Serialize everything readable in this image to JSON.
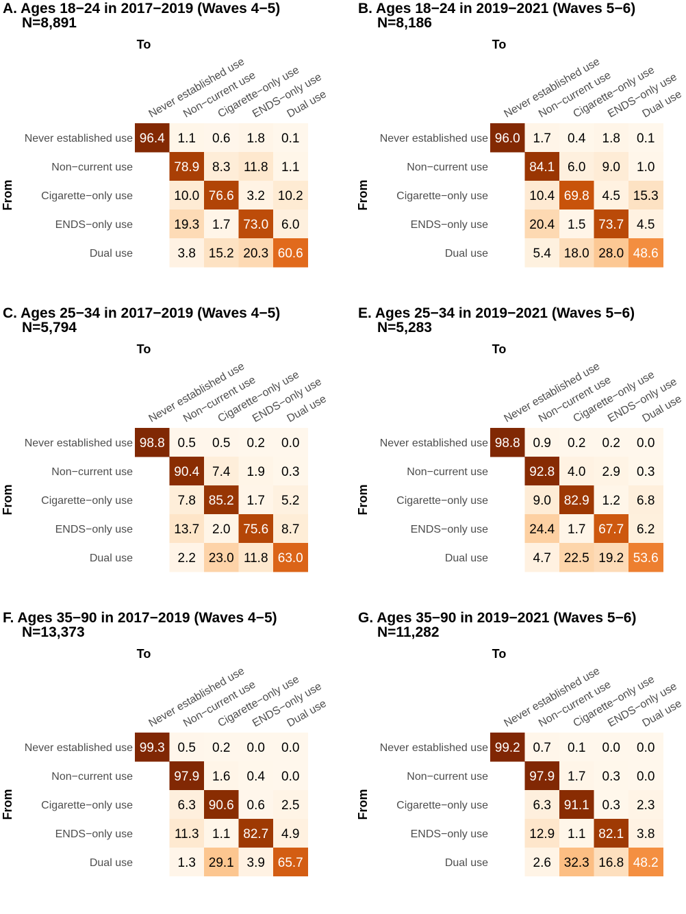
{
  "palette": {
    "0": "#fff7ec",
    "10": "#feebd4",
    "20": "#fddab4",
    "30": "#fcc48c",
    "40": "#fba863",
    "50": "#f28a3a",
    "60": "#e36c1d",
    "70": "#c7520b",
    "80": "#a53d04",
    "90": "#8a2d02",
    "100": "#7f2704",
    "light_text": "#000000",
    "dark_text": "#ffffff"
  },
  "chart_data": [
    {
      "type": "heatmap",
      "title": "A. Ages 18−24 in 2017−2019 (Waves 4−5)",
      "subtitle": "N=8,891",
      "xlabel": "To",
      "ylabel": "From",
      "x": [
        "Never established use",
        "Non−current use",
        "Cigarette−only use",
        "ENDS−only use",
        "Dual use"
      ],
      "y": [
        "Never established use",
        "Non−current use",
        "Cigarette−only use",
        "ENDS−only use",
        "Dual use"
      ],
      "values": [
        [
          96.4,
          1.1,
          0.6,
          1.8,
          0.1
        ],
        [
          null,
          78.9,
          8.3,
          11.8,
          1.1
        ],
        [
          null,
          10.0,
          76.6,
          3.2,
          10.2
        ],
        [
          null,
          19.3,
          1.7,
          73.0,
          6.0
        ],
        [
          null,
          3.8,
          15.2,
          20.3,
          60.6
        ]
      ]
    },
    {
      "type": "heatmap",
      "title": "B. Ages 18−24 in 2019−2021 (Waves 5−6)",
      "subtitle": "N=8,186",
      "xlabel": "To",
      "ylabel": "From",
      "x": [
        "Never established use",
        "Non−current use",
        "Cigarette−only use",
        "ENDS−only use",
        "Dual use"
      ],
      "y": [
        "Never established use",
        "Non−current use",
        "Cigarette−only use",
        "ENDS−only use",
        "Dual use"
      ],
      "values": [
        [
          96.0,
          1.7,
          0.4,
          1.8,
          0.1
        ],
        [
          null,
          84.1,
          6.0,
          9.0,
          1.0
        ],
        [
          null,
          10.4,
          69.8,
          4.5,
          15.3
        ],
        [
          null,
          20.4,
          1.5,
          73.7,
          4.5
        ],
        [
          null,
          5.4,
          18.0,
          28.0,
          48.6
        ]
      ]
    },
    {
      "type": "heatmap",
      "title": "C. Ages 25−34 in 2017−2019 (Waves 4−5)",
      "subtitle": "N=5,794",
      "xlabel": "To",
      "ylabel": "From",
      "x": [
        "Never established use",
        "Non−current use",
        "Cigarette−only use",
        "ENDS−only use",
        "Dual use"
      ],
      "y": [
        "Never established use",
        "Non−current use",
        "Cigarette−only use",
        "ENDS−only use",
        "Dual use"
      ],
      "values": [
        [
          98.8,
          0.5,
          0.5,
          0.2,
          0.0
        ],
        [
          null,
          90.4,
          7.4,
          1.9,
          0.3
        ],
        [
          null,
          7.8,
          85.2,
          1.7,
          5.2
        ],
        [
          null,
          13.7,
          2.0,
          75.6,
          8.7
        ],
        [
          null,
          2.2,
          23.0,
          11.8,
          63.0
        ]
      ]
    },
    {
      "type": "heatmap",
      "title": "E. Ages 25−34 in 2019−2021 (Waves 5−6)",
      "subtitle": "N=5,283",
      "xlabel": "To",
      "ylabel": "From",
      "x": [
        "Never established use",
        "Non−current use",
        "Cigarette−only use",
        "ENDS−only use",
        "Dual use"
      ],
      "y": [
        "Never established use",
        "Non−current use",
        "Cigarette−only use",
        "ENDS−only use",
        "Dual use"
      ],
      "values": [
        [
          98.8,
          0.9,
          0.2,
          0.2,
          0.0
        ],
        [
          null,
          92.8,
          4.0,
          2.9,
          0.3
        ],
        [
          null,
          9.0,
          82.9,
          1.2,
          6.8
        ],
        [
          null,
          24.4,
          1.7,
          67.7,
          6.2
        ],
        [
          null,
          4.7,
          22.5,
          19.2,
          53.6
        ]
      ]
    },
    {
      "type": "heatmap",
      "title": "F. Ages 35−90 in 2017−2019 (Waves 4−5)",
      "subtitle": "N=13,373",
      "xlabel": "To",
      "ylabel": "From",
      "x": [
        "Never established use",
        "Non−current use",
        "Cigarette−only use",
        "ENDS−only use",
        "Dual use"
      ],
      "y": [
        "Never established use",
        "Non−current use",
        "Cigarette−only use",
        "ENDS−only use",
        "Dual use"
      ],
      "values": [
        [
          99.3,
          0.5,
          0.2,
          0.0,
          0.0
        ],
        [
          null,
          97.9,
          1.6,
          0.4,
          0.0
        ],
        [
          null,
          6.3,
          90.6,
          0.6,
          2.5
        ],
        [
          null,
          11.3,
          1.1,
          82.7,
          4.9
        ],
        [
          null,
          1.3,
          29.1,
          3.9,
          65.7
        ]
      ]
    },
    {
      "type": "heatmap",
      "title": "G. Ages 35−90 in 2019−2021 (Waves 5−6)",
      "subtitle": "N=11,282",
      "xlabel": "To",
      "ylabel": "From",
      "x": [
        "Never established use",
        "Non−current use",
        "Cigarette−only use",
        "ENDS−only use",
        "Dual use"
      ],
      "y": [
        "Never established use",
        "Non−current use",
        "Cigarette−only use",
        "ENDS−only use",
        "Dual use"
      ],
      "values": [
        [
          99.2,
          0.7,
          0.1,
          0.0,
          0.0
        ],
        [
          null,
          97.9,
          1.7,
          0.3,
          0.0
        ],
        [
          null,
          6.3,
          91.1,
          0.3,
          2.3
        ],
        [
          null,
          12.9,
          1.1,
          82.1,
          3.8
        ],
        [
          null,
          2.6,
          32.3,
          16.8,
          48.2
        ]
      ]
    }
  ]
}
